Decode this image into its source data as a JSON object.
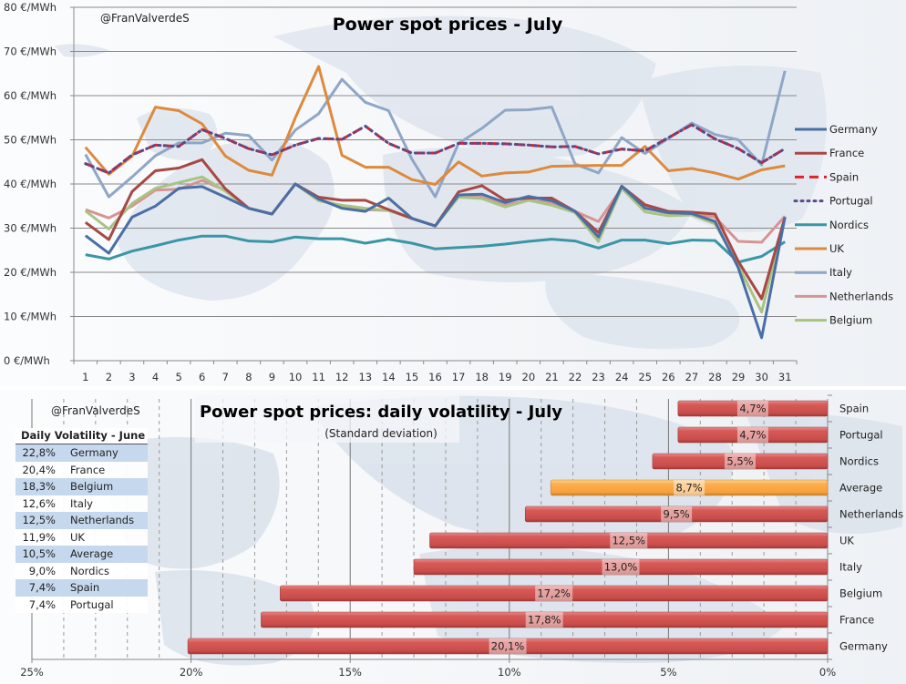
{
  "chart_data": [
    {
      "type": "line",
      "title": "Power spot prices - July",
      "watermark": "@FranValverdeS",
      "xlabel": "",
      "ylabel": "",
      "ylim": [
        0,
        80
      ],
      "yticks": [
        0,
        10,
        20,
        30,
        40,
        50,
        60,
        70,
        80
      ],
      "ytick_labels": [
        "0 €/MWh",
        "10 €/MWh",
        "20 €/MWh",
        "30 €/MWh",
        "40 €/MWh",
        "50 €/MWh",
        "60 €/MWh",
        "70 €/MWh",
        "80 €/MWh"
      ],
      "x": [
        1,
        2,
        3,
        4,
        5,
        6,
        7,
        8,
        9,
        10,
        11,
        12,
        13,
        14,
        15,
        16,
        17,
        18,
        19,
        20,
        21,
        22,
        23,
        24,
        25,
        26,
        27,
        28,
        29,
        30,
        31
      ],
      "grid": "horizontal",
      "legend": "right",
      "series": [
        {
          "name": "Germany",
          "color": "#4a6fa5",
          "dash": "solid",
          "values": [
            28.3,
            24.3,
            32.5,
            35.0,
            39.0,
            39.4,
            37.0,
            34.5,
            33.2,
            40.0,
            36.6,
            34.5,
            33.8,
            36.8,
            32.2,
            30.5,
            37.5,
            37.7,
            35.8,
            37.2,
            36.2,
            33.8,
            28.0,
            39.5,
            34.5,
            33.5,
            33.3,
            31.5,
            21.0,
            5.2,
            32.5
          ]
        },
        {
          "name": "France",
          "color": "#a84845",
          "dash": "solid",
          "values": [
            31.3,
            27.4,
            38.3,
            43.0,
            43.6,
            45.5,
            38.9,
            34.5,
            33.2,
            40.0,
            37.0,
            36.3,
            36.3,
            34.2,
            32.2,
            30.5,
            38.2,
            39.6,
            36.3,
            36.8,
            36.8,
            33.8,
            29.0,
            39.5,
            35.3,
            33.8,
            33.6,
            33.2,
            22.5,
            14.0,
            32.5
          ]
        },
        {
          "name": "Spain",
          "color": "#e0202a",
          "dash": "dash",
          "values": [
            44.6,
            42.5,
            46.6,
            48.8,
            48.5,
            52.3,
            50.3,
            48.0,
            46.6,
            48.8,
            50.3,
            50.1,
            53.1,
            49.2,
            47.0,
            47.0,
            49.2,
            49.2,
            49.1,
            48.8,
            48.4,
            48.5,
            46.8,
            47.9,
            47.5,
            50.5,
            53.4,
            50.2,
            48.0,
            44.8,
            48.0
          ]
        },
        {
          "name": "Portugal",
          "color": "#5a4a8a",
          "dash": "dot",
          "values": [
            44.6,
            42.5,
            46.6,
            48.8,
            48.5,
            52.3,
            50.3,
            48.0,
            46.6,
            48.8,
            50.3,
            50.1,
            53.1,
            49.2,
            47.0,
            47.0,
            49.2,
            49.2,
            49.1,
            48.8,
            48.4,
            48.5,
            46.8,
            47.9,
            47.5,
            50.5,
            53.4,
            50.2,
            48.0,
            44.8,
            48.0
          ]
        },
        {
          "name": "Nordics",
          "color": "#3a95a5",
          "dash": "solid",
          "values": [
            24.0,
            23.0,
            24.8,
            26.0,
            27.3,
            28.2,
            28.2,
            27.1,
            26.9,
            28.0,
            27.6,
            27.6,
            26.6,
            27.5,
            26.6,
            25.3,
            25.6,
            25.9,
            26.4,
            27.0,
            27.5,
            27.1,
            25.5,
            27.3,
            27.3,
            26.5,
            27.3,
            27.2,
            22.3,
            23.6,
            26.9
          ]
        },
        {
          "name": "UK",
          "color": "#dc8a3e",
          "dash": "solid",
          "values": [
            48.3,
            42.2,
            46.3,
            57.4,
            56.6,
            53.6,
            46.3,
            43.1,
            42.0,
            55.0,
            66.6,
            46.5,
            43.8,
            43.8,
            41.0,
            39.9,
            45.0,
            41.8,
            42.5,
            42.7,
            44.0,
            44.1,
            44.2,
            44.2,
            48.5,
            43.0,
            43.5,
            42.5,
            41.1,
            43.2,
            44.1
          ]
        },
        {
          "name": "Italy",
          "color": "#8fa6c6",
          "dash": "solid",
          "values": [
            46.7,
            37.1,
            41.6,
            46.4,
            49.3,
            49.3,
            51.5,
            51.0,
            45.4,
            52.2,
            55.9,
            63.7,
            58.5,
            56.6,
            45.6,
            37.1,
            49.2,
            52.6,
            56.7,
            56.8,
            57.4,
            44.5,
            42.5,
            50.5,
            46.9,
            50.3,
            53.8,
            51.2,
            50.0,
            44.3,
            65.6
          ]
        },
        {
          "name": "Netherlands",
          "color": "#d69494",
          "dash": "solid",
          "values": [
            34.2,
            32.3,
            35.0,
            38.6,
            38.8,
            40.8,
            38.6,
            34.5,
            33.2,
            40.0,
            36.6,
            34.7,
            34.2,
            34.0,
            32.2,
            30.5,
            37.2,
            37.0,
            35.2,
            36.3,
            35.8,
            33.8,
            31.5,
            39.0,
            34.7,
            33.3,
            33.3,
            32.5,
            27.0,
            26.8,
            32.7
          ]
        },
        {
          "name": "Belgium",
          "color": "#a9c383",
          "dash": "solid",
          "values": [
            33.9,
            29.8,
            35.6,
            39.0,
            40.3,
            41.6,
            38.4,
            34.5,
            33.2,
            40.0,
            36.2,
            35.2,
            34.5,
            34.0,
            32.2,
            30.5,
            37.0,
            36.7,
            34.8,
            36.3,
            35.2,
            33.5,
            27.0,
            39.0,
            33.7,
            32.8,
            33.0,
            31.0,
            21.5,
            11.0,
            32.5
          ]
        }
      ]
    },
    {
      "type": "bar",
      "orientation": "horizontal",
      "title": "Power spot prices: daily volatility - July",
      "subtitle": "(Standard deviation)",
      "watermark": "@FranValverdeS",
      "xlabel": "",
      "ylabel": "",
      "xlim": [
        0,
        25
      ],
      "x_reversed": true,
      "xticks": [
        0,
        5,
        10,
        15,
        20,
        25
      ],
      "xtick_labels": [
        "0%",
        "5%",
        "10%",
        "15%",
        "20%",
        "25%"
      ],
      "grid": "vertical",
      "categories": [
        "Spain",
        "Portugal",
        "Nordics",
        "Average",
        "Netherlands",
        "UK",
        "Italy",
        "Belgium",
        "France",
        "Germany"
      ],
      "values": [
        4.7,
        4.7,
        5.5,
        8.7,
        9.5,
        12.5,
        13.0,
        17.2,
        17.8,
        20.1
      ],
      "value_labels": [
        "4,7%",
        "4,7%",
        "5,5%",
        "8,7%",
        "9,5%",
        "12,5%",
        "13,0%",
        "17,2%",
        "17,8%",
        "20,1%"
      ],
      "bar_colors": [
        "#d05454",
        "#d05454",
        "#d05454",
        "#f5a84a",
        "#d05454",
        "#d05454",
        "#d05454",
        "#d05454",
        "#d05454",
        "#d05454"
      ],
      "highlight_category": "Average"
    }
  ],
  "june_table": {
    "title": "Daily Volatility - June",
    "rows": [
      {
        "value": "22,8%",
        "name": "Germany"
      },
      {
        "value": "20,4%",
        "name": "France"
      },
      {
        "value": "18,3%",
        "name": "Belgium"
      },
      {
        "value": "12,6%",
        "name": "Italy"
      },
      {
        "value": "12,5%",
        "name": "Netherlands"
      },
      {
        "value": "11,9%",
        "name": "UK"
      },
      {
        "value": "10,5%",
        "name": "Average"
      },
      {
        "value": "9,0%",
        "name": "Nordics"
      },
      {
        "value": "7,4%",
        "name": "Spain"
      },
      {
        "value": "7,4%",
        "name": "Portugal"
      }
    ]
  }
}
